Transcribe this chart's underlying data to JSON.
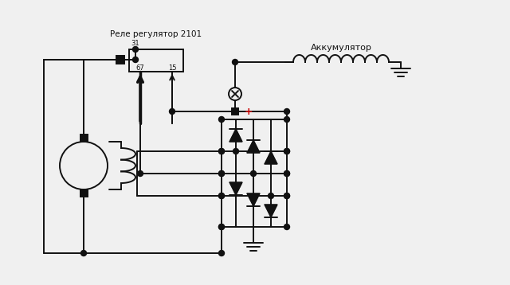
{
  "bg_color": "#f0f0f0",
  "line_color": "#111111",
  "title_relay": "Реле регулятор 2101",
  "title_battery": "Аккумулятор",
  "label_31": "31",
  "label_67": "67",
  "label_15": "15",
  "plus_color": "#cc0000",
  "dot_color": "#111111",
  "lw": 1.4
}
